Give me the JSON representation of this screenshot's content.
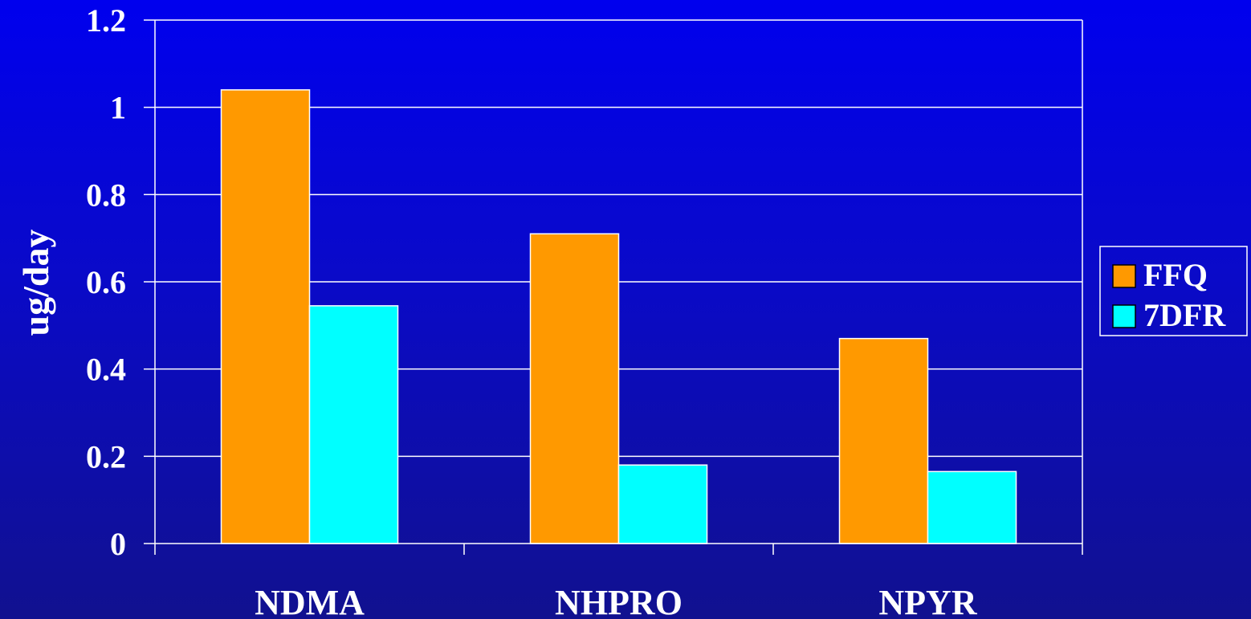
{
  "chart_data": {
    "type": "bar",
    "categories": [
      "NDMA",
      "NHPRO",
      "NPYR"
    ],
    "series": [
      {
        "name": "FFQ",
        "values": [
          1.04,
          0.71,
          0.47
        ],
        "color": "#ff9900"
      },
      {
        "name": "7DFR",
        "values": [
          0.545,
          0.18,
          0.165
        ],
        "color": "#00ffff"
      }
    ],
    "title": "",
    "xlabel": "",
    "ylabel": "ug/day",
    "ylim": [
      0,
      1.2
    ],
    "yticks": [
      0,
      0.2,
      0.4,
      0.6,
      0.8,
      1,
      1.2
    ],
    "ytick_labels": [
      "0",
      "0.2",
      "0.4",
      "0.6",
      "0.8",
      "1",
      "1.2"
    ],
    "grid": true,
    "legend_position": "right"
  },
  "colors": {
    "background_top": "#0000ee",
    "background_bottom": "#11118f",
    "axis": "#ffffff",
    "text": "#ffffff"
  }
}
